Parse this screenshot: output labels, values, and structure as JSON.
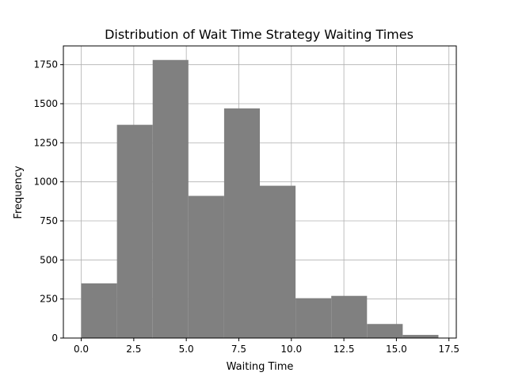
{
  "chart_data": {
    "type": "bar",
    "title": "Distribution of Wait Time Strategy Waiting Times",
    "xlabel": "Waiting Time",
    "ylabel": "Frequency",
    "bin_edges": [
      0.0,
      1.7,
      3.4,
      5.1,
      6.8,
      8.5,
      10.2,
      11.9,
      13.6,
      15.3,
      17.0
    ],
    "values": [
      350,
      1365,
      1780,
      910,
      1470,
      975,
      255,
      270,
      90,
      20
    ],
    "xlim": [
      -0.85,
      17.85
    ],
    "ylim": [
      0,
      1870
    ],
    "xticks": [
      0.0,
      2.5,
      5.0,
      7.5,
      10.0,
      12.5,
      15.0,
      17.5
    ],
    "xtick_labels": [
      "0.0",
      "2.5",
      "5.0",
      "7.5",
      "10.0",
      "12.5",
      "15.0",
      "17.5"
    ],
    "yticks": [
      0,
      250,
      500,
      750,
      1000,
      1250,
      1500,
      1750
    ],
    "ytick_labels": [
      "0",
      "250",
      "500",
      "750",
      "1000",
      "1250",
      "1500",
      "1750"
    ],
    "grid": true,
    "bar_color": "#808080"
  }
}
